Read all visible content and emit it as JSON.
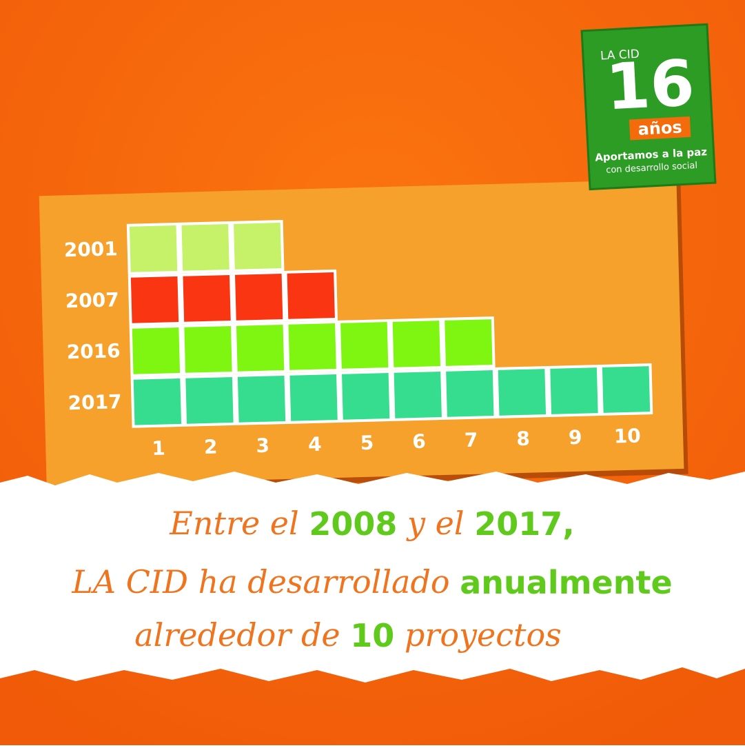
{
  "chart_data": {
    "type": "bar",
    "orientation": "horizontal",
    "categories": [
      "2001",
      "2007",
      "2016",
      "2017"
    ],
    "values": [
      3,
      4,
      7,
      10
    ],
    "colors": [
      "#c6f26a",
      "#fa3512",
      "#7ff512",
      "#36dd8e"
    ],
    "xlim": [
      0,
      10
    ],
    "xticks": [
      1,
      2,
      3,
      4,
      5,
      6,
      7,
      8,
      9,
      10
    ]
  },
  "badge": {
    "brand": "LA CID",
    "number": "16",
    "unit": "años",
    "line1": "Aportamos a la paz",
    "line2": "con desarrollo social"
  },
  "caption": {
    "lines": [
      [
        "Entre el ",
        "2008",
        " y el ",
        "2017,"
      ],
      [
        "LA CID ha desarrollado ",
        "anualmente"
      ],
      [
        "alrededor de ",
        "10",
        " proyectos"
      ]
    ]
  }
}
